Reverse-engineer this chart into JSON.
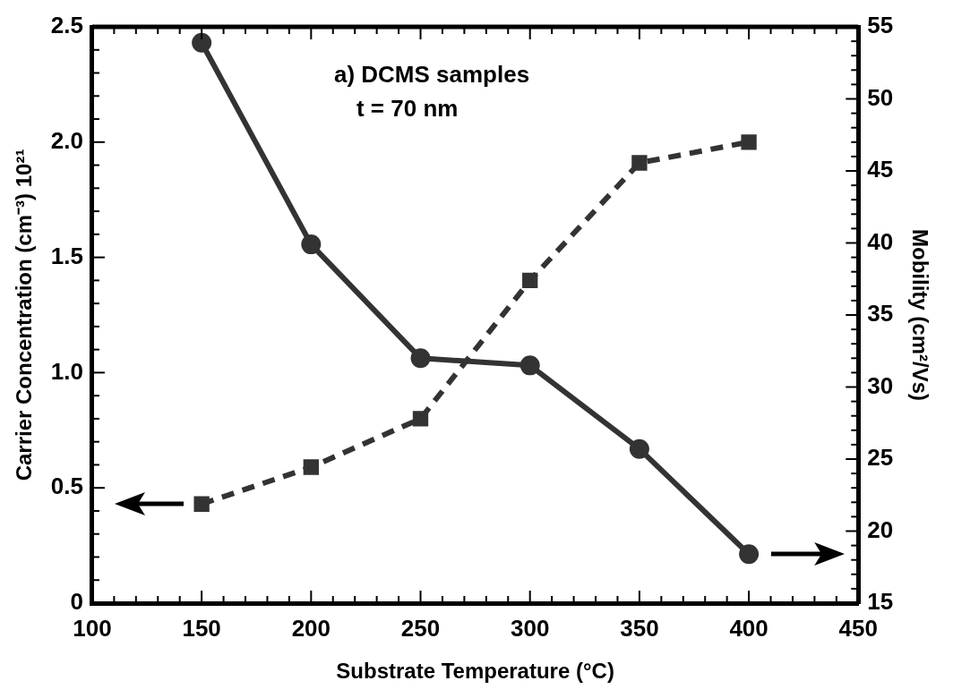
{
  "chart_data": {
    "type": "line",
    "xlabel": "Substrate Temperature (°C)",
    "ylabel": "Carrier Concentration (cm⁻³) 10²¹",
    "y2label": "Mobility (cm²/Vs)",
    "annotations": [
      "a) DCMS samples",
      "t = 70 nm"
    ],
    "x": [
      150,
      200,
      250,
      300,
      350,
      400
    ],
    "series": [
      {
        "color": "#333333",
        "marker": "square",
        "line_style": "dashed",
        "values": [
          0.43,
          0.59,
          0.8,
          1.4,
          1.91,
          2.0
        ]
      },
      {
        "color": "#333333",
        "marker": "circle",
        "line_style": "solid",
        "axis": "y2",
        "values": [
          53.9,
          39.9,
          32.0,
          31.5,
          25.7,
          18.4
        ]
      }
    ],
    "xlim": [
      100,
      450
    ],
    "xticks": [
      100,
      {
        "value": 110,
        "label": null
      },
      {
        "value": 120,
        "label": null
      },
      {
        "value": 130,
        "label": null
      },
      {
        "value": 140,
        "label": null
      },
      150,
      {
        "value": 160,
        "label": null
      },
      {
        "value": 170,
        "label": null
      },
      {
        "value": 180,
        "label": null
      },
      {
        "value": 190,
        "label": null
      },
      200,
      {
        "value": 210,
        "label": null
      },
      {
        "value": 220,
        "label": null
      },
      {
        "value": 230,
        "label": null
      },
      {
        "value": 240,
        "label": null
      },
      250,
      {
        "value": 260,
        "label": null
      },
      {
        "value": 270,
        "label": null
      },
      {
        "value": 280,
        "label": null
      },
      {
        "value": 290,
        "label": null
      },
      300,
      {
        "value": 310,
        "label": null
      },
      {
        "value": 320,
        "label": null
      },
      {
        "value": 330,
        "label": null
      },
      {
        "value": 340,
        "label": null
      },
      350,
      {
        "value": 360,
        "label": null
      },
      {
        "value": 370,
        "label": null
      },
      {
        "value": 380,
        "label": null
      },
      {
        "value": 390,
        "label": null
      },
      400,
      {
        "value": 410,
        "label": null
      },
      {
        "value": 420,
        "label": null
      },
      {
        "value": 430,
        "label": null
      },
      {
        "value": 440,
        "label": null
      },
      450
    ],
    "ylim": [
      0,
      2.5
    ],
    "yticks": [
      0,
      {
        "value": 0.1,
        "label": null
      },
      {
        "value": 0.2,
        "label": null
      },
      {
        "value": 0.3,
        "label": null
      },
      {
        "value": 0.4,
        "label": null
      },
      0.5,
      {
        "value": 0.6,
        "label": null
      },
      {
        "value": 0.7,
        "label": null
      },
      {
        "value": 0.8,
        "label": null
      },
      {
        "value": 0.9,
        "label": null
      },
      {
        "value": 1,
        "label": "1.0"
      },
      {
        "value": 1.1,
        "label": null
      },
      {
        "value": 1.2,
        "label": null
      },
      {
        "value": 1.3,
        "label": null
      },
      {
        "value": 1.4,
        "label": null
      },
      1.5,
      {
        "value": 1.6,
        "label": null
      },
      {
        "value": 1.7,
        "label": null
      },
      {
        "value": 1.8,
        "label": null
      },
      {
        "value": 1.9,
        "label": null
      },
      {
        "value": 2,
        "label": "2.0"
      },
      {
        "value": 2.1,
        "label": null
      },
      {
        "value": 2.2,
        "label": null
      },
      {
        "value": 2.3,
        "label": null
      },
      {
        "value": 2.4,
        "label": null
      },
      2.5
    ],
    "y2lim": [
      15,
      55
    ],
    "y2ticks": [
      15,
      {
        "value": 16,
        "label": null
      },
      {
        "value": 17,
        "label": null
      },
      {
        "value": 18,
        "label": null
      },
      {
        "value": 19,
        "label": null
      },
      20,
      {
        "value": 21,
        "label": null
      },
      {
        "value": 22,
        "label": null
      },
      {
        "value": 23,
        "label": null
      },
      {
        "value": 24,
        "label": null
      },
      25,
      {
        "value": 26,
        "label": null
      },
      {
        "value": 27,
        "label": null
      },
      {
        "value": 28,
        "label": null
      },
      {
        "value": 29,
        "label": null
      },
      30,
      {
        "value": 31,
        "label": null
      },
      {
        "value": 32,
        "label": null
      },
      {
        "value": 33,
        "label": null
      },
      {
        "value": 34,
        "label": null
      },
      35,
      {
        "value": 36,
        "label": null
      },
      {
        "value": 37,
        "label": null
      },
      {
        "value": 38,
        "label": null
      },
      {
        "value": 39,
        "label": null
      },
      40,
      {
        "value": 41,
        "label": null
      },
      {
        "value": 42,
        "label": null
      },
      {
        "value": 43,
        "label": null
      },
      {
        "value": 44,
        "label": null
      },
      45,
      {
        "value": 46,
        "label": null
      },
      {
        "value": 47,
        "label": null
      },
      {
        "value": 48,
        "label": null
      },
      {
        "value": 49,
        "label": null
      },
      50,
      {
        "value": 51,
        "label": null
      },
      {
        "value": 52,
        "label": null
      },
      {
        "value": 53,
        "label": null
      },
      {
        "value": 54,
        "label": null
      },
      55
    ],
    "grid": false,
    "legend": false
  }
}
